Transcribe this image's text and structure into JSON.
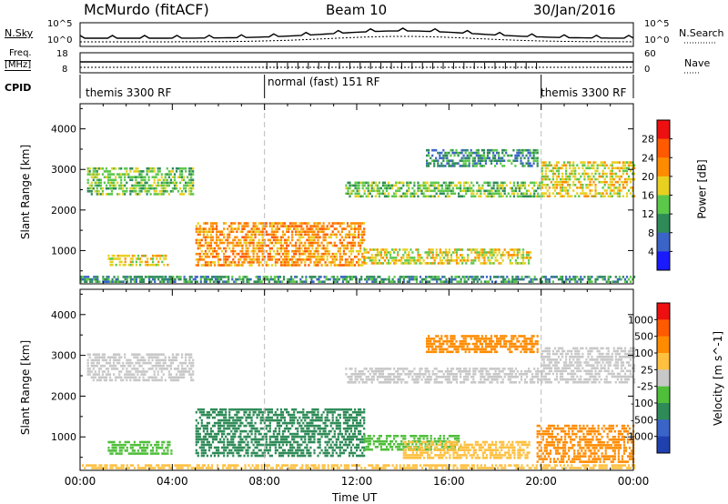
{
  "header": {
    "title": "McMurdo (fitACF)",
    "beam": "Beam 10",
    "date": "30/Jan/2016"
  },
  "sky_panel": {
    "left_label": "N.Sky",
    "right_label": "N.Search",
    "left_ticks": [
      "10^5",
      "10^0"
    ],
    "right_ticks": [
      "10^5",
      "10^0"
    ]
  },
  "freq_panel": {
    "left_label_1": "Freq.",
    "left_label_2": "[MHz]",
    "right_label": "Nave",
    "left_ticks": [
      "18",
      "8"
    ],
    "right_ticks": [
      "60",
      "0"
    ]
  },
  "cpid_panel": {
    "label": "CPID",
    "segments": [
      "themis 3300 RF",
      "normal (fast) 151 RF",
      "themis 3300 RF"
    ]
  },
  "chart_data": [
    {
      "type": "heatmap",
      "name": "power",
      "ylabel": "Slant Range [km]",
      "yticks": [
        1000,
        2000,
        3000,
        4000
      ],
      "ylim": [
        180,
        4620
      ],
      "x_hours": [
        0,
        24
      ],
      "colorbar_label": "Power [dB]",
      "colorbar_ticks": [
        "4",
        "8",
        "12",
        "16",
        "20",
        "24",
        "28"
      ],
      "colorbar_colors": [
        "#1a1aff",
        "#3b64c8",
        "#2e8b57",
        "#5cc84a",
        "#e8d020",
        "#ff8c00",
        "#ff5a00",
        "#ee1010"
      ],
      "bands": [
        {
          "x0": 0.3,
          "x1": 4.9,
          "y0": 2350,
          "y1": 3050,
          "level": 3
        },
        {
          "x0": 1.2,
          "x1": 3.8,
          "y0": 600,
          "y1": 900,
          "level": 4
        },
        {
          "x0": 5.0,
          "x1": 12.3,
          "y0": 600,
          "y1": 1700,
          "level": 5
        },
        {
          "x0": 12.3,
          "x1": 19.5,
          "y0": 650,
          "y1": 1050,
          "level": 4
        },
        {
          "x0": 11.5,
          "x1": 20.0,
          "y0": 2300,
          "y1": 2700,
          "level": 3
        },
        {
          "x0": 15.0,
          "x1": 19.8,
          "y0": 3050,
          "y1": 3500,
          "level": 2
        },
        {
          "x0": 20.0,
          "x1": 24.0,
          "y0": 2300,
          "y1": 3200,
          "level": 4
        },
        {
          "x0": 0.0,
          "x1": 24.0,
          "y0": 200,
          "y1": 380,
          "level": 2
        }
      ]
    },
    {
      "type": "heatmap",
      "name": "velocity",
      "xlabel": "Time UT",
      "ylabel": "Slant Range [km]",
      "yticks": [
        1000,
        2000,
        3000,
        4000
      ],
      "ylim": [
        180,
        4620
      ],
      "xticks": [
        "00:00",
        "04:00",
        "08:00",
        "12:00",
        "16:00",
        "20:00",
        "00:00"
      ],
      "colorbar_label": "Velocity [m s^-1]",
      "colorbar_ticks": [
        "1000",
        "500",
        "100",
        "25",
        "-25",
        "-100",
        "-500",
        "-1000"
      ],
      "colorbar_colors": [
        "#2040b0",
        "#3b64c8",
        "#2e8b57",
        "#4fbf3a",
        "#c8c8c8",
        "#ffc040",
        "#ff8c00",
        "#ff5a00",
        "#ee1010"
      ],
      "bands": [
        {
          "x0": 0.3,
          "x1": 4.9,
          "y0": 2350,
          "y1": 3050,
          "color": "#c8c8c8"
        },
        {
          "x0": 1.2,
          "x1": 4.0,
          "y0": 550,
          "y1": 900,
          "color": "#4fbf3a"
        },
        {
          "x0": 5.0,
          "x1": 12.3,
          "y0": 500,
          "y1": 1700,
          "color": "#2e8b57"
        },
        {
          "x0": 12.3,
          "x1": 16.5,
          "y0": 650,
          "y1": 1050,
          "color": "#4fbf3a"
        },
        {
          "x0": 14.0,
          "x1": 19.5,
          "y0": 450,
          "y1": 900,
          "color": "#ffc040"
        },
        {
          "x0": 11.5,
          "x1": 20.0,
          "y0": 2300,
          "y1": 2700,
          "color": "#c8c8c8"
        },
        {
          "x0": 15.0,
          "x1": 19.8,
          "y0": 3050,
          "y1": 3500,
          "color": "#ff8c00"
        },
        {
          "x0": 20.0,
          "x1": 24.0,
          "y0": 2300,
          "y1": 3200,
          "color": "#c8c8c8"
        },
        {
          "x0": 19.8,
          "x1": 24.0,
          "y0": 350,
          "y1": 1300,
          "color": "#ff8c00"
        },
        {
          "x0": 0.0,
          "x1": 24.0,
          "y0": 200,
          "y1": 330,
          "color": "#ffc040"
        }
      ]
    }
  ]
}
